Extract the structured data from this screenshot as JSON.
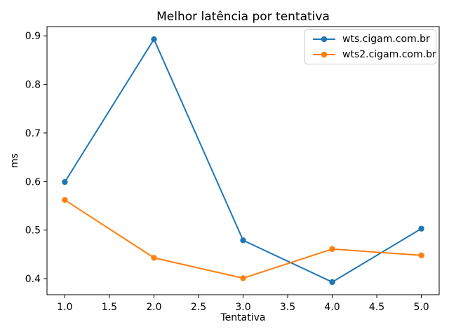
{
  "chart_data": {
    "type": "line",
    "title": "Melhor latência por tentativa",
    "xlabel": "Tentativa",
    "ylabel": "ms",
    "x": [
      1,
      2,
      3,
      4,
      5
    ],
    "series": [
      {
        "name": "wts.cigam.com.br",
        "color": "#1f77b4",
        "values": [
          0.599,
          0.893,
          0.479,
          0.393,
          0.503
        ]
      },
      {
        "name": "wts2.cigam.com.br",
        "color": "#ff7f0e",
        "values": [
          0.562,
          0.443,
          0.401,
          0.461,
          0.448
        ]
      }
    ],
    "xlim": [
      0.8,
      5.2
    ],
    "ylim": [
      0.367,
      0.919
    ],
    "xticks": [
      1.0,
      1.5,
      2.0,
      2.5,
      3.0,
      3.5,
      4.0,
      4.5,
      5.0
    ],
    "xtick_labels": [
      "1.0",
      "1.5",
      "2.0",
      "2.5",
      "3.0",
      "3.5",
      "4.0",
      "4.5",
      "5.0"
    ],
    "yticks": [
      0.4,
      0.5,
      0.6,
      0.7,
      0.8,
      0.9
    ],
    "ytick_labels": [
      "0.4",
      "0.5",
      "0.6",
      "0.7",
      "0.8",
      "0.9"
    ],
    "grid": false,
    "legend_position": "upper right",
    "marker": "o",
    "spine_color": "#000000",
    "background_color": "#ffffff"
  }
}
